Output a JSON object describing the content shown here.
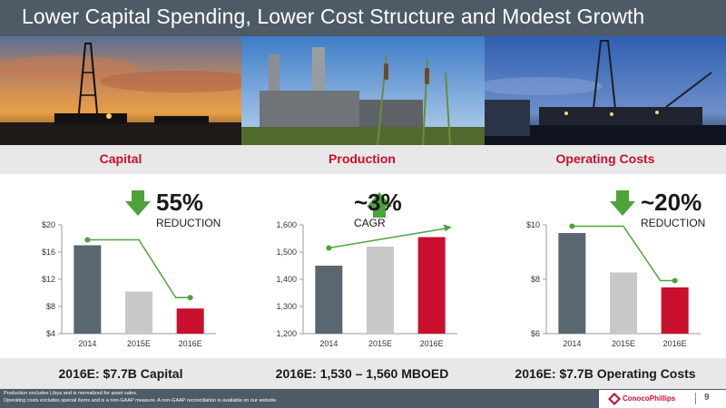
{
  "title": "Lower Capital Spending, Lower Cost Structure and Modest Growth",
  "columns": [
    {
      "heading": "Capital",
      "summary": "2016E: $7.7B Capital"
    },
    {
      "heading": "Production",
      "summary": "2016E: 1,530 – 1,560 MBOED"
    },
    {
      "heading": "Operating Costs",
      "summary": "2016E: $7.7B Operating Costs"
    }
  ],
  "footnotes": [
    "Production excludes Libya and is normalized for asset sales.",
    "Operating costs excludes special items and is a non-GAAP measure. A non-GAAP reconciliation is available on our website."
  ],
  "logo": "ConocoPhillips",
  "page_number": "9",
  "colors": {
    "dark": "#5b6770",
    "light": "#c8c8c8",
    "red": "#c8102e",
    "green": "#4ea23a",
    "accent_text": "#c8102e"
  },
  "chart_data": [
    {
      "type": "bar",
      "categories": [
        "2014",
        "2015E",
        "2016E"
      ],
      "values": [
        17,
        10.2,
        7.7
      ],
      "ylim": [
        4,
        20
      ],
      "yticks": [
        "$4",
        "$8",
        "$12",
        "$16",
        "$20"
      ],
      "ytick_values": [
        4,
        8,
        12,
        16,
        20
      ],
      "trend": [
        17.8,
        17.8,
        9.3
      ],
      "callout_value": "55%",
      "callout_label": "REDUCTION",
      "arrow": "down"
    },
    {
      "type": "bar",
      "categories": [
        "2014",
        "2015E",
        "2016E"
      ],
      "values": [
        1450,
        1520,
        1555
      ],
      "ylim": [
        1200,
        1600
      ],
      "yticks": [
        "1,200",
        "1,300",
        "1,400",
        "1,500",
        "1,600"
      ],
      "ytick_values": [
        1200,
        1300,
        1400,
        1500,
        1600
      ],
      "trend": [
        1515,
        1560,
        1592
      ],
      "callout_value": "~3%",
      "callout_label": "CAGR",
      "arrow": "up"
    },
    {
      "type": "bar",
      "categories": [
        "2014",
        "2015E",
        "2016E"
      ],
      "values": [
        9.7,
        8.25,
        7.7
      ],
      "ylim": [
        6,
        10
      ],
      "yticks": [
        "$6",
        "$8",
        "$10"
      ],
      "ytick_values": [
        6,
        8,
        10
      ],
      "trend": [
        9.95,
        9.95,
        7.95
      ],
      "callout_value": "~20%",
      "callout_label": "REDUCTION",
      "arrow": "down"
    }
  ]
}
